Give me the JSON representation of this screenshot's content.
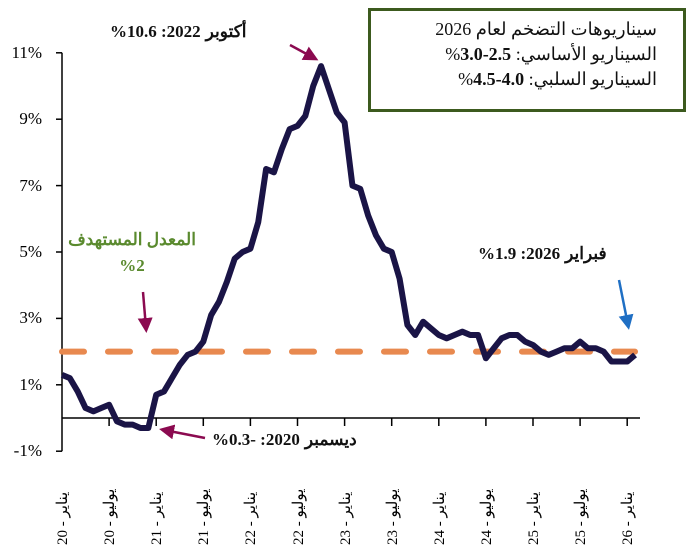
{
  "chart_data": {
    "type": "line",
    "title": "",
    "xlabel": "",
    "ylabel": "",
    "ylim": [
      -1,
      11
    ],
    "y_ticks": [
      "-1%",
      "1%",
      "3%",
      "5%",
      "7%",
      "9%",
      "11%"
    ],
    "x_start": "2020-01",
    "x_end": "2026-02",
    "x_tick_labels": [
      "20 - يناير",
      "20 - يوليو",
      "21 - يناير",
      "21 - يوليو",
      "22 - يناير",
      "22 - يوليو",
      "23 - يناير",
      "23 - يوليو",
      "24 - يناير",
      "24 - يوليو",
      "25 - يناير",
      "25 - يوليو",
      "26 - يناير"
    ],
    "series": [
      {
        "name": "inflation",
        "color": "#1a1446",
        "values": [
          1.3,
          1.2,
          0.8,
          0.3,
          0.2,
          0.3,
          0.4,
          -0.1,
          -0.2,
          -0.2,
          -0.3,
          -0.3,
          0.7,
          0.8,
          1.2,
          1.6,
          1.9,
          2.0,
          2.3,
          3.1,
          3.5,
          4.1,
          4.8,
          5.0,
          5.1,
          5.9,
          7.5,
          7.4,
          8.1,
          8.7,
          8.8,
          9.1,
          10.0,
          10.6,
          9.9,
          9.2,
          8.9,
          7.0,
          6.9,
          6.1,
          5.5,
          5.1,
          5.0,
          4.2,
          2.8,
          2.5,
          2.9,
          2.7,
          2.5,
          2.4,
          2.5,
          2.6,
          2.5,
          2.5,
          1.8,
          2.1,
          2.4,
          2.5,
          2.5,
          2.3,
          2.2,
          2.0,
          1.9,
          2.0,
          2.1,
          2.1,
          2.3,
          2.1,
          2.1,
          2.0,
          1.7,
          1.7,
          1.7,
          1.9
        ]
      },
      {
        "name": "target",
        "color": "#e8894f",
        "values": [
          2.0
        ],
        "style": "dashed"
      }
    ],
    "annotations": {
      "peak": {
        "label": "أكتوبر",
        "value": "%10.6 :2022"
      },
      "trough": {
        "label": "ديسمبر",
        "value": "%0.3- :2020"
      },
      "latest": {
        "label": "فبراير",
        "value": "%1.9 :2026"
      },
      "target_line1": "المعدل المستهدف",
      "target_line2": "%2"
    },
    "legend": {
      "title": "سيناريوهات التضخم لعام 2026",
      "base_label": "السيناريو الأساسي: ",
      "base_value": "3.0-2.5",
      "neg_label": "السيناريو السلبي: ",
      "neg_value": "4.5-4.0",
      "pct": "%"
    },
    "colors": {
      "arrow_red": "#8b0a50",
      "arrow_blue": "#1f6fc4",
      "legend_border": "#3c5a1e",
      "target_text": "#5a8a2e"
    }
  }
}
